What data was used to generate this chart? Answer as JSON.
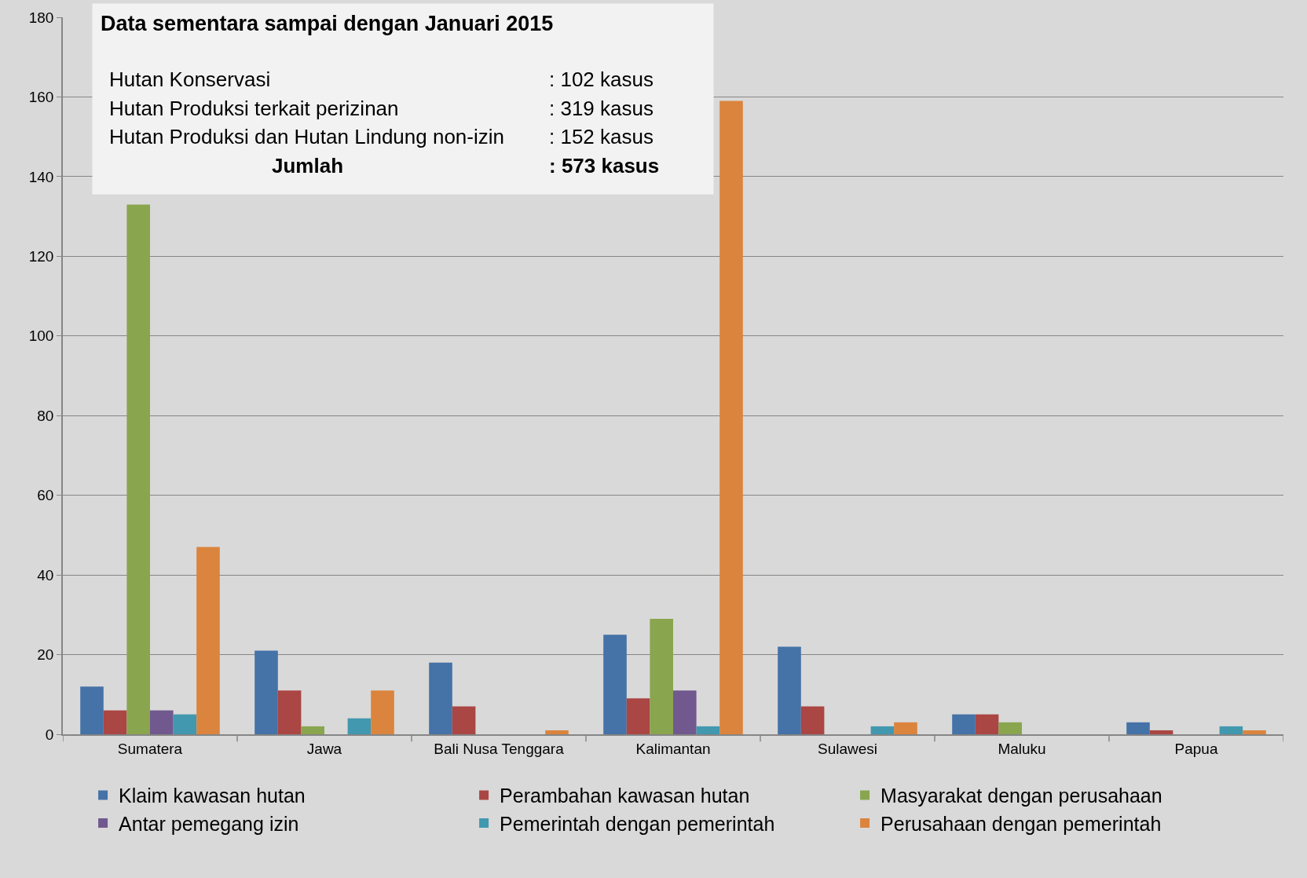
{
  "chart_data": {
    "type": "bar",
    "categories": [
      "Sumatera",
      "Jawa",
      "Bali Nusa Tenggara",
      "Kalimantan",
      "Sulawesi",
      "Maluku",
      "Papua"
    ],
    "series": [
      {
        "name": "Klaim kawasan hutan",
        "color": "#4572a7",
        "values": [
          12,
          21,
          18,
          25,
          22,
          5,
          3
        ]
      },
      {
        "name": "Perambahan kawasan hutan",
        "color": "#aa4643",
        "values": [
          6,
          11,
          7,
          9,
          7,
          5,
          1
        ]
      },
      {
        "name": "Masyarakat dengan perusahaan",
        "color": "#89a54e",
        "values": [
          133,
          2,
          0,
          29,
          0,
          3,
          0
        ]
      },
      {
        "name": "Antar pemegang izin",
        "color": "#71588f",
        "values": [
          6,
          0,
          0,
          11,
          0,
          0,
          0
        ]
      },
      {
        "name": "Pemerintah dengan pemerintah",
        "color": "#4198af",
        "values": [
          5,
          4,
          0,
          2,
          2,
          0,
          2
        ]
      },
      {
        "name": "Perusahaan dengan pemerintah",
        "color": "#db843d",
        "values": [
          47,
          11,
          1,
          159,
          3,
          0,
          1
        ]
      }
    ],
    "ylim": [
      0,
      180
    ],
    "yticks": [
      0,
      20,
      40,
      60,
      80,
      100,
      120,
      140,
      160,
      180
    ],
    "grid": "y",
    "legend": "bottom",
    "annotations": [
      "Data sementara sampai dengan Januari 2015",
      "Hutan Konservasi",
      ": 102 kasus",
      "Hutan Produksi terkait perizinan",
      ": 319 kasus",
      "Hutan Produksi dan Hutan Lindung non-izin",
      ": 152 kasus",
      "Jumlah",
      ": 573 kasus"
    ]
  }
}
